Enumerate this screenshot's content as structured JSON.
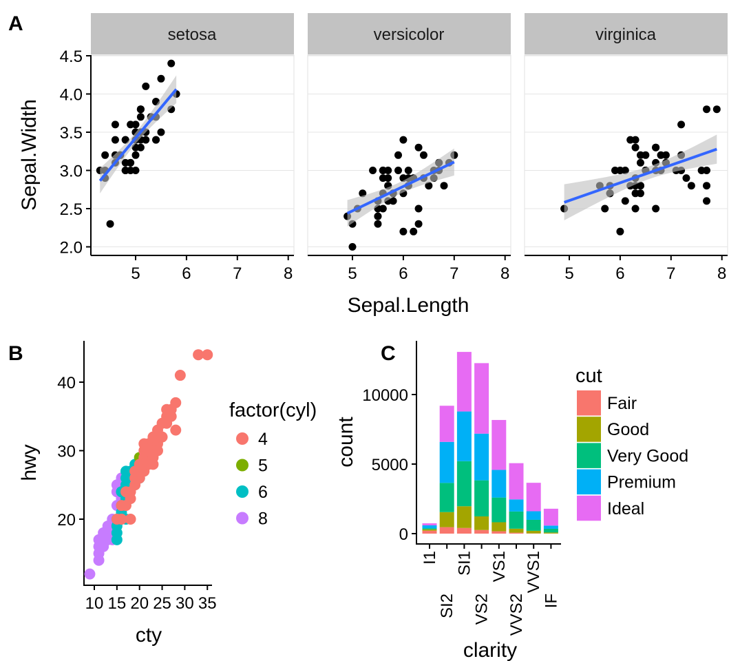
{
  "panel_labels": {
    "a": "A",
    "b": "B",
    "c": "C"
  },
  "chart_data": [
    {
      "type": "scatter",
      "facet_by": "Species",
      "facets": [
        "setosa",
        "versicolor",
        "virginica"
      ],
      "xlabel": "Sepal.Length",
      "ylabel": "Sepal.Width",
      "xlim": [
        4.1,
        8.1
      ],
      "ylim": [
        1.9,
        4.5
      ],
      "xticks": [
        5,
        6,
        7,
        8
      ],
      "yticks": [
        "2.0",
        "2.5",
        "3.0",
        "3.5",
        "4.0",
        "4.5"
      ],
      "grid": true,
      "smooth": "lm with confidence band",
      "point_color": "#000000",
      "line_color": "#3366FF",
      "band_color": "#BEBEBE",
      "strip_color": "#C2C2C2",
      "series": [
        {
          "name": "setosa",
          "points": [
            [
              5.1,
              3.5
            ],
            [
              4.9,
              3.0
            ],
            [
              4.7,
              3.2
            ],
            [
              4.6,
              3.1
            ],
            [
              5.0,
              3.6
            ],
            [
              5.4,
              3.9
            ],
            [
              4.6,
              3.4
            ],
            [
              5.0,
              3.4
            ],
            [
              4.4,
              2.9
            ],
            [
              4.9,
              3.1
            ],
            [
              5.4,
              3.7
            ],
            [
              4.8,
              3.4
            ],
            [
              4.8,
              3.0
            ],
            [
              4.3,
              3.0
            ],
            [
              5.8,
              4.0
            ],
            [
              5.7,
              4.4
            ],
            [
              5.4,
              3.9
            ],
            [
              5.1,
              3.5
            ],
            [
              5.7,
              3.8
            ],
            [
              5.1,
              3.8
            ],
            [
              5.4,
              3.4
            ],
            [
              5.1,
              3.7
            ],
            [
              4.6,
              3.6
            ],
            [
              5.1,
              3.3
            ],
            [
              4.8,
              3.4
            ],
            [
              5.0,
              3.0
            ],
            [
              5.0,
              3.4
            ],
            [
              5.2,
              3.5
            ],
            [
              5.2,
              3.4
            ],
            [
              4.7,
              3.2
            ],
            [
              4.8,
              3.1
            ],
            [
              5.4,
              3.4
            ],
            [
              5.2,
              4.1
            ],
            [
              5.5,
              4.2
            ],
            [
              4.9,
              3.1
            ],
            [
              5.0,
              3.2
            ],
            [
              5.5,
              3.5
            ],
            [
              4.9,
              3.6
            ],
            [
              4.4,
              3.0
            ],
            [
              5.1,
              3.4
            ],
            [
              5.0,
              3.5
            ],
            [
              4.5,
              2.3
            ],
            [
              4.4,
              3.2
            ],
            [
              5.0,
              3.5
            ],
            [
              5.1,
              3.8
            ],
            [
              4.8,
              3.0
            ],
            [
              5.1,
              3.8
            ],
            [
              4.6,
              3.2
            ],
            [
              5.3,
              3.7
            ],
            [
              5.0,
              3.3
            ]
          ]
        },
        {
          "name": "versicolor",
          "points": [
            [
              7.0,
              3.2
            ],
            [
              6.4,
              3.2
            ],
            [
              6.9,
              3.1
            ],
            [
              5.5,
              2.3
            ],
            [
              6.5,
              2.8
            ],
            [
              5.7,
              2.8
            ],
            [
              6.3,
              3.3
            ],
            [
              4.9,
              2.4
            ],
            [
              6.6,
              2.9
            ],
            [
              5.2,
              2.7
            ],
            [
              5.0,
              2.0
            ],
            [
              5.9,
              3.0
            ],
            [
              6.0,
              2.2
            ],
            [
              6.1,
              2.9
            ],
            [
              5.6,
              2.9
            ],
            [
              6.7,
              3.1
            ],
            [
              5.6,
              3.0
            ],
            [
              5.8,
              2.7
            ],
            [
              6.2,
              2.2
            ],
            [
              5.6,
              2.5
            ],
            [
              5.9,
              3.2
            ],
            [
              6.1,
              2.8
            ],
            [
              6.3,
              2.5
            ],
            [
              6.1,
              2.8
            ],
            [
              6.4,
              2.9
            ],
            [
              6.6,
              3.0
            ],
            [
              6.8,
              2.8
            ],
            [
              6.7,
              3.0
            ],
            [
              6.0,
              2.9
            ],
            [
              5.7,
              2.6
            ],
            [
              5.5,
              2.4
            ],
            [
              5.5,
              2.4
            ],
            [
              5.8,
              2.7
            ],
            [
              6.0,
              2.7
            ],
            [
              5.4,
              3.0
            ],
            [
              6.0,
              3.4
            ],
            [
              6.7,
              3.1
            ],
            [
              6.3,
              2.3
            ],
            [
              5.6,
              3.0
            ],
            [
              5.5,
              2.5
            ],
            [
              5.5,
              2.6
            ],
            [
              6.1,
              3.0
            ],
            [
              5.8,
              2.6
            ],
            [
              5.0,
              2.3
            ],
            [
              5.6,
              2.7
            ],
            [
              5.7,
              3.0
            ],
            [
              5.7,
              2.9
            ],
            [
              6.2,
              2.9
            ],
            [
              5.1,
              2.5
            ],
            [
              5.7,
              2.8
            ]
          ]
        },
        {
          "name": "virginica",
          "points": [
            [
              6.3,
              3.3
            ],
            [
              5.8,
              2.7
            ],
            [
              7.1,
              3.0
            ],
            [
              6.3,
              2.9
            ],
            [
              6.5,
              3.0
            ],
            [
              7.6,
              3.0
            ],
            [
              4.9,
              2.5
            ],
            [
              7.3,
              2.9
            ],
            [
              6.7,
              2.5
            ],
            [
              7.2,
              3.6
            ],
            [
              6.5,
              3.2
            ],
            [
              6.4,
              2.7
            ],
            [
              6.8,
              3.0
            ],
            [
              5.7,
              2.5
            ],
            [
              5.8,
              2.8
            ],
            [
              6.4,
              3.2
            ],
            [
              6.5,
              3.0
            ],
            [
              7.7,
              3.8
            ],
            [
              7.7,
              2.6
            ],
            [
              6.0,
              2.2
            ],
            [
              6.9,
              3.2
            ],
            [
              5.6,
              2.8
            ],
            [
              7.7,
              2.8
            ],
            [
              6.3,
              2.7
            ],
            [
              6.7,
              3.3
            ],
            [
              7.2,
              3.2
            ],
            [
              6.2,
              2.8
            ],
            [
              6.1,
              3.0
            ],
            [
              6.4,
              2.8
            ],
            [
              7.2,
              3.0
            ],
            [
              7.4,
              2.8
            ],
            [
              7.9,
              3.8
            ],
            [
              6.4,
              2.8
            ],
            [
              6.3,
              2.8
            ],
            [
              6.1,
              2.6
            ],
            [
              7.7,
              3.0
            ],
            [
              6.3,
              3.4
            ],
            [
              6.4,
              3.1
            ],
            [
              6.0,
              3.0
            ],
            [
              6.9,
              3.1
            ],
            [
              6.7,
              3.1
            ],
            [
              6.9,
              3.1
            ],
            [
              5.8,
              2.7
            ],
            [
              6.8,
              3.2
            ],
            [
              6.7,
              3.3
            ],
            [
              6.7,
              3.0
            ],
            [
              6.3,
              2.5
            ],
            [
              6.5,
              3.0
            ],
            [
              6.2,
              3.4
            ],
            [
              5.9,
              3.0
            ]
          ]
        }
      ]
    },
    {
      "type": "scatter",
      "xlabel": "cty",
      "ylabel": "hwy",
      "xlim": [
        8.5,
        35.5
      ],
      "ylim": [
        11,
        45.5
      ],
      "xticks": [
        "10",
        "15",
        "20",
        "25",
        "30",
        "35"
      ],
      "yticks": [
        "20",
        "30",
        "40"
      ],
      "grid": false,
      "legend": {
        "title": "factor(cyl)",
        "position": "right"
      },
      "series": [
        {
          "name": "4",
          "color": "#F8766D",
          "points": [
            [
              15,
              20
            ],
            [
              16,
              20
            ],
            [
              17,
              22
            ],
            [
              18,
              23
            ],
            [
              18,
              24
            ],
            [
              19,
              25
            ],
            [
              19,
              26
            ],
            [
              19,
              27
            ],
            [
              20,
              26
            ],
            [
              20,
              27
            ],
            [
              20,
              28
            ],
            [
              21,
              27
            ],
            [
              21,
              29
            ],
            [
              21,
              30
            ],
            [
              21,
              31
            ],
            [
              22,
              29
            ],
            [
              22,
              30
            ],
            [
              22,
              31
            ],
            [
              23,
              29
            ],
            [
              23,
              31
            ],
            [
              23,
              32
            ],
            [
              24,
              31
            ],
            [
              24,
              32
            ],
            [
              24,
              33
            ],
            [
              25,
              32
            ],
            [
              26,
              35
            ],
            [
              26,
              36
            ],
            [
              27,
              36
            ],
            [
              28,
              33
            ],
            [
              28,
              37
            ],
            [
              29,
              41
            ],
            [
              33,
              44
            ],
            [
              35,
              44
            ],
            [
              25,
              34
            ],
            [
              26,
              34
            ],
            [
              27,
              35
            ],
            [
              21,
              28
            ],
            [
              22,
              28
            ],
            [
              23,
              28
            ],
            [
              24,
              30
            ],
            [
              16,
              22
            ],
            [
              17,
              24
            ],
            [
              18,
              20
            ]
          ]
        },
        {
          "name": "5",
          "color": "#7CAE00",
          "points": [
            [
              20,
              28
            ],
            [
              20,
              29
            ],
            [
              21,
              29
            ]
          ]
        },
        {
          "name": "6",
          "color": "#00BFC4",
          "points": [
            [
              15,
              17
            ],
            [
              15,
              18
            ],
            [
              15,
              19
            ],
            [
              15,
              20
            ],
            [
              16,
              20
            ],
            [
              16,
              21
            ],
            [
              17,
              20
            ],
            [
              16,
              24
            ],
            [
              17,
              25
            ],
            [
              17,
              24
            ],
            [
              18,
              26
            ],
            [
              17,
              26
            ],
            [
              18,
              27
            ],
            [
              19,
              27
            ],
            [
              19,
              28
            ],
            [
              18,
              25
            ],
            [
              16,
              22
            ],
            [
              17,
              23
            ],
            [
              17,
              27
            ],
            [
              19,
              26
            ],
            [
              20,
              26
            ]
          ]
        },
        {
          "name": "8",
          "color": "#C77CFF",
          "points": [
            [
              9,
              12
            ],
            [
              11,
              15
            ],
            [
              11,
              16
            ],
            [
              11,
              17
            ],
            [
              12,
              16
            ],
            [
              12,
              17
            ],
            [
              13,
              17
            ],
            [
              13,
              18
            ],
            [
              14,
              17
            ],
            [
              14,
              19
            ],
            [
              14,
              20
            ],
            [
              15,
              22
            ],
            [
              15,
              24
            ],
            [
              15,
              25
            ],
            [
              16,
              23
            ],
            [
              16,
              24
            ],
            [
              16,
              25
            ],
            [
              16,
              26
            ],
            [
              12,
              18
            ],
            [
              11,
              14
            ],
            [
              13,
              19
            ],
            [
              14,
              18
            ],
            [
              15,
              20
            ],
            [
              16,
              20
            ]
          ]
        }
      ]
    },
    {
      "type": "bar",
      "stacked": true,
      "xlabel": "clarity",
      "ylabel": "count",
      "categories": [
        "I1",
        "SI2",
        "SI1",
        "VS2",
        "VS1",
        "VVS2",
        "VVS1",
        "IF"
      ],
      "yticks": [
        "0",
        "5000",
        "10000"
      ],
      "ylim": [
        0,
        13500
      ],
      "grid": false,
      "legend": {
        "title": "cut",
        "position": "right"
      },
      "series": [
        {
          "name": "Fair",
          "color": "#F8766D",
          "values": [
            210,
            466,
            408,
            261,
            170,
            69,
            17,
            9
          ]
        },
        {
          "name": "Good",
          "color": "#A3A500",
          "values": [
            96,
            1081,
            1560,
            978,
            648,
            286,
            186,
            71
          ]
        },
        {
          "name": "Very Good",
          "color": "#00BF7D",
          "values": [
            84,
            2100,
            3240,
            2591,
            1775,
            1235,
            789,
            268
          ]
        },
        {
          "name": "Premium",
          "color": "#00B0F6",
          "values": [
            205,
            2949,
            3575,
            3357,
            1989,
            870,
            616,
            230
          ]
        },
        {
          "name": "Ideal",
          "color": "#E76BF3",
          "values": [
            146,
            2598,
            4282,
            5071,
            3589,
            2606,
            2047,
            1212
          ]
        }
      ]
    }
  ]
}
